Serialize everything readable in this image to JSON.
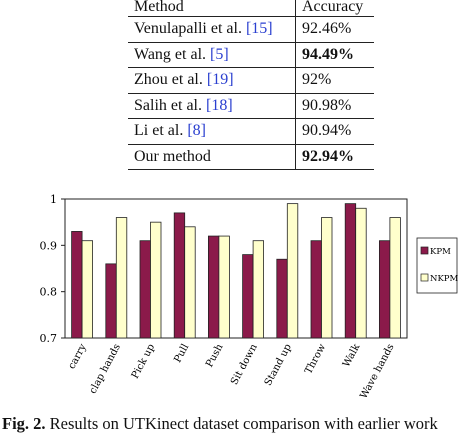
{
  "table": {
    "headers": [
      "Method",
      "Accuracy"
    ],
    "rows": [
      {
        "method": "Venulapalli et al. ",
        "cite": "[15]",
        "accuracy": "92.46%",
        "bold": false
      },
      {
        "method": "Wang et al. ",
        "cite": "[5]",
        "accuracy": "94.49%",
        "bold": true
      },
      {
        "method": "Zhou et al. ",
        "cite": "[19]",
        "accuracy": "92%",
        "bold": false
      },
      {
        "method": "Salih et al. ",
        "cite": "[18]",
        "accuracy": "90.98%",
        "bold": false
      },
      {
        "method": "Li et al. ",
        "cite": "[8]",
        "accuracy": "90.94%",
        "bold": false
      },
      {
        "method": "Our method",
        "cite": "",
        "accuracy": "92.94%",
        "bold": true
      }
    ]
  },
  "chart_data": {
    "type": "bar",
    "categories": [
      "carry",
      "clap hands",
      "Pick up",
      "Pull",
      "Push",
      "Sit down",
      "Stand up",
      "Throw",
      "Walk",
      "Wave hands"
    ],
    "series": [
      {
        "name": "KPM",
        "color": "#8b1a4a",
        "values": [
          0.93,
          0.86,
          0.91,
          0.97,
          0.92,
          0.88,
          0.87,
          0.91,
          0.99,
          0.91
        ]
      },
      {
        "name": "NKPM",
        "color": "#ffffcc",
        "values": [
          0.91,
          0.96,
          0.95,
          0.94,
          0.92,
          0.91,
          0.99,
          0.96,
          0.98,
          0.96
        ]
      }
    ],
    "ylim": [
      0.7,
      1.0
    ],
    "yticks": [
      "0.7",
      "0.8",
      "0.9",
      "1"
    ],
    "ytick_values": [
      0.7,
      0.8,
      0.9,
      1.0
    ],
    "legend_position": "right",
    "grid": false
  },
  "caption": {
    "label": "Fig. 2.",
    "text": " Results on UTKinect dataset comparison with earlier work"
  }
}
